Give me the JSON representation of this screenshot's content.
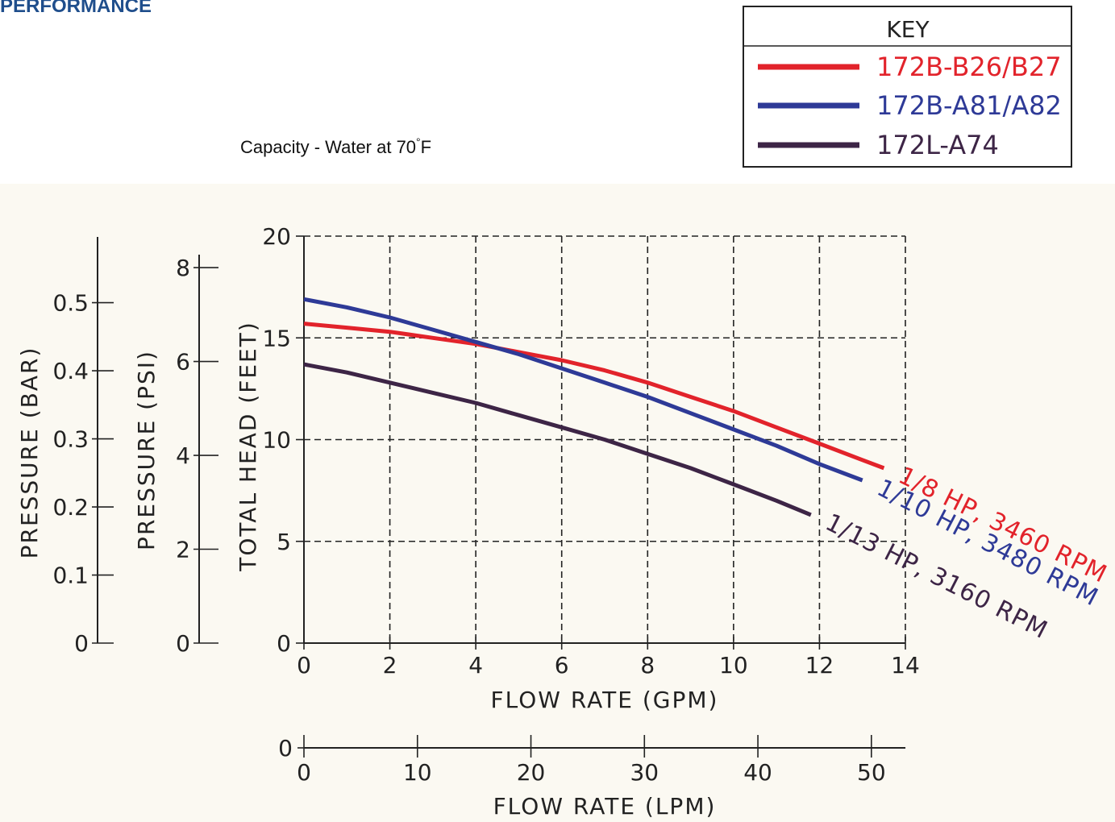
{
  "page": {
    "heading": "PERFORMANCE",
    "capacity_title": "Capacity - Water at 70",
    "capacity_degree": "°",
    "capacity_unit": "F"
  },
  "chart_data": {
    "type": "line",
    "xlabel": "FLOW RATE (GPM)",
    "xlim": [
      0,
      14
    ],
    "x_ticks": [
      0,
      2,
      4,
      6,
      8,
      10,
      12,
      14
    ],
    "ylabel": "TOTAL HEAD (FEET)",
    "ylim": [
      0,
      20
    ],
    "y_ticks": [
      0,
      5,
      10,
      15,
      20
    ],
    "grid": true,
    "secondary_axes": {
      "pressure_psi": {
        "label": "PRESSURE (PSI)",
        "ticks": [
          0,
          2,
          4,
          6,
          8
        ]
      },
      "pressure_bar": {
        "label": "PRESSURE (BAR)",
        "ticks": [
          "0",
          "0.1",
          "0.2",
          "0.3",
          "0.4",
          "0.5"
        ]
      },
      "flow_lpm": {
        "label": "FLOW RATE (LPM)",
        "ticks": [
          0,
          10,
          20,
          30,
          40,
          50
        ],
        "origin_label": "0"
      }
    },
    "legend": {
      "title": "KEY",
      "placement": "top-right",
      "entries": [
        "172B-B26/B27",
        "172B-A81/A82",
        "172L-A74"
      ]
    },
    "series": [
      {
        "name": "172B-B26/B27",
        "label": "1/8 HP, 3460 RPM",
        "color": "#e2232b",
        "x": [
          0,
          1,
          2,
          3,
          4,
          5,
          6,
          7,
          8,
          9,
          10,
          11,
          12,
          13,
          13.5
        ],
        "y": [
          15.7,
          15.5,
          15.3,
          15.0,
          14.7,
          14.3,
          13.9,
          13.4,
          12.8,
          12.1,
          11.4,
          10.6,
          9.8,
          9.0,
          8.6
        ]
      },
      {
        "name": "172B-A81/A82",
        "label": "1/10 HP, 3480 RPM",
        "color": "#2e3a97",
        "x": [
          0,
          1,
          2,
          3,
          4,
          5,
          6,
          7,
          8,
          9,
          10,
          11,
          12,
          13
        ],
        "y": [
          16.9,
          16.5,
          16.0,
          15.4,
          14.8,
          14.2,
          13.5,
          12.8,
          12.1,
          11.3,
          10.5,
          9.7,
          8.8,
          8.0
        ]
      },
      {
        "name": "172L-A74",
        "label": "1/13 HP, 3160 RPM",
        "color": "#3d2546",
        "x": [
          0,
          1,
          2,
          3,
          4,
          5,
          6,
          7,
          8,
          9,
          10,
          11,
          11.8
        ],
        "y": [
          13.7,
          13.3,
          12.8,
          12.3,
          11.8,
          11.2,
          10.6,
          10.0,
          9.3,
          8.6,
          7.8,
          7.0,
          6.3
        ]
      }
    ]
  }
}
